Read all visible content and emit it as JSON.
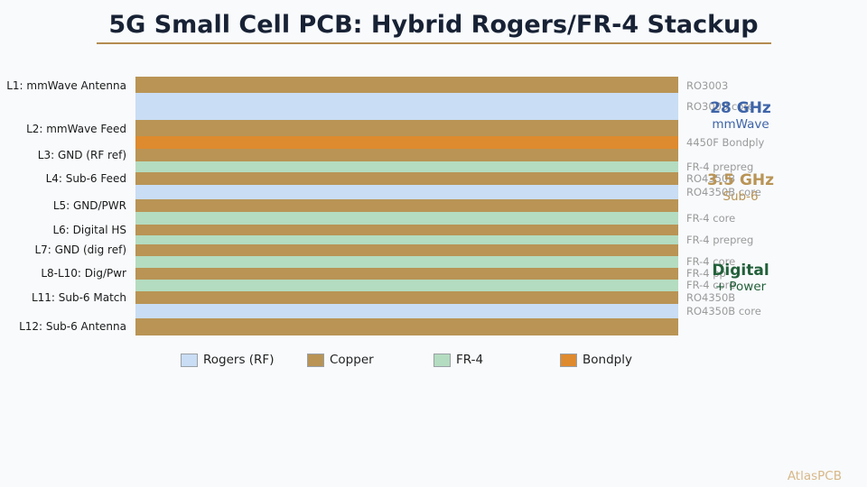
{
  "title": "5G Small Cell PCB: Hybrid Rogers/FR-4 Stackup",
  "colors": {
    "rogers": "#c9ddf4",
    "copper": "#b99455",
    "fr4": "#b4dcc0",
    "bondply": "#de8a2e",
    "mmwave": "#3e64a8",
    "sub6": "#b99455",
    "digital": "#22603a"
  },
  "layers": [
    {
      "material": "copper"
    },
    {
      "material": "rogers"
    },
    {
      "material": "copper"
    },
    {
      "material": "bondply"
    },
    {
      "material": "copper"
    },
    {
      "material": "fr4"
    },
    {
      "material": "copper"
    },
    {
      "material": "rogers"
    },
    {
      "material": "copper"
    },
    {
      "material": "fr4"
    },
    {
      "material": "copper"
    },
    {
      "material": "fr4"
    },
    {
      "material": "copper"
    },
    {
      "material": "fr4"
    },
    {
      "material": "copper"
    },
    {
      "material": "fr4"
    },
    {
      "material": "copper"
    },
    {
      "material": "rogers"
    },
    {
      "material": "copper"
    }
  ],
  "layer_labels": [
    "L1: mmWave Antenna",
    "L2: mmWave Feed",
    "L3: GND (RF ref)",
    "L4: Sub-6 Feed",
    "L5: GND/PWR",
    "L6: Digital HS",
    "L7: GND (dig ref)",
    "L8-L10: Dig/Pwr",
    "L11: Sub-6 Match",
    "L12: Sub-6 Antenna"
  ],
  "material_labels": [
    "RO3003",
    "RO3003 core",
    "4450F Bondply",
    "FR-4 prepreg",
    "RO4350B",
    "RO4350B core",
    "FR-4 core",
    "FR-4 prepreg",
    "FR-4 core",
    "FR-4 pp",
    "FR-4 core",
    "RO4350B",
    "RO4350B core"
  ],
  "groups": [
    {
      "title": "28 GHz",
      "subtitle": "mmWave",
      "color": "mmwave"
    },
    {
      "title": "3.5 GHz",
      "subtitle": "Sub-6",
      "color": "sub6"
    },
    {
      "title": "Digital",
      "subtitle": "+ Power",
      "color": "digital"
    }
  ],
  "legend": [
    {
      "label": "Rogers (RF)",
      "material": "rogers"
    },
    {
      "label": "Copper",
      "material": "copper"
    },
    {
      "label": "FR-4",
      "material": "fr4"
    },
    {
      "label": "Bondply",
      "material": "bondply"
    }
  ],
  "brand": "AtlasPCB"
}
